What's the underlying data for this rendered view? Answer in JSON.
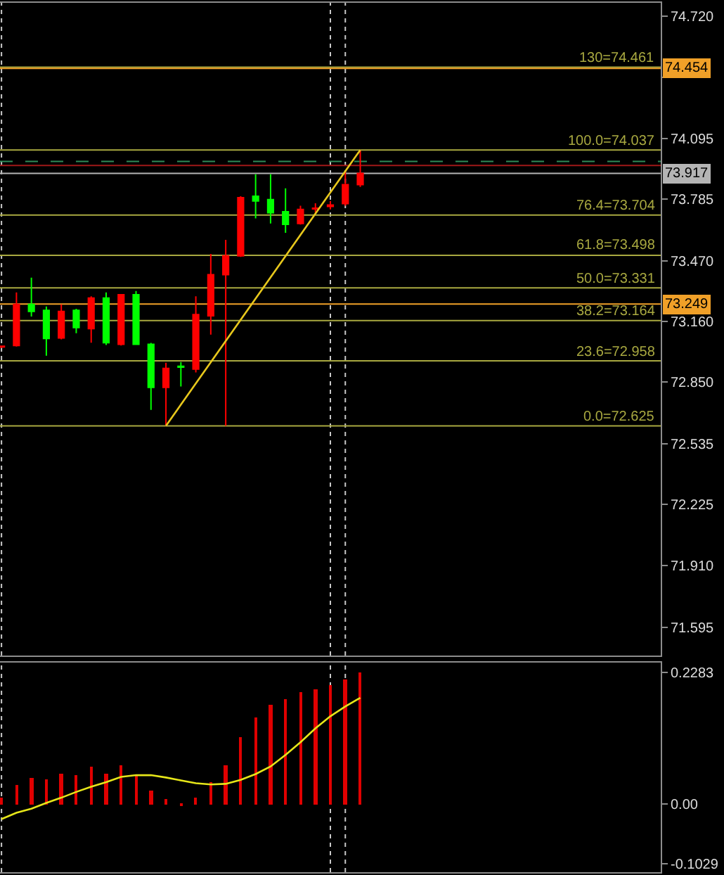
{
  "chart_data": [
    {
      "type": "candlestick",
      "categories": [
        null,
        null,
        null,
        null,
        null,
        null,
        null,
        null,
        null,
        null,
        null,
        null,
        null,
        null,
        null,
        null,
        null,
        null,
        null,
        null,
        null,
        null,
        null,
        null,
        null,
        null,
        null,
        null,
        null,
        null,
        null,
        null,
        null,
        null,
        null,
        null,
        null,
        null,
        null,
        null,
        null,
        null,
        null,
        null,
        null
      ],
      "ohlc": [
        [
          73.029,
          73.036,
          73.024,
          73.033
        ],
        [
          73.036,
          73.308,
          73.031,
          73.247
        ],
        [
          73.247,
          73.384,
          73.185,
          73.211
        ],
        [
          73.216,
          73.236,
          72.984,
          73.072
        ],
        [
          73.075,
          73.247,
          73.068,
          73.211
        ],
        [
          73.216,
          73.224,
          73.099,
          73.128
        ],
        [
          73.123,
          73.288,
          73.051,
          73.279
        ],
        [
          73.279,
          73.308,
          73.039,
          73.051
        ],
        [
          73.043,
          73.3,
          73.036,
          73.296
        ],
        [
          73.296,
          73.315,
          73.039,
          73.043
        ],
        [
          73.043,
          73.05,
          72.707,
          72.822
        ],
        [
          72.822,
          72.948,
          72.625,
          72.919
        ],
        [
          72.93,
          72.952,
          72.827,
          72.926
        ],
        [
          72.916,
          73.288,
          72.899,
          73.195
        ],
        [
          73.188,
          73.505,
          73.092,
          73.399
        ],
        [
          73.399,
          73.577,
          72.625,
          73.495
        ],
        [
          73.495,
          73.8,
          73.49,
          73.793
        ],
        [
          73.8,
          73.913,
          73.687,
          73.776
        ],
        [
          73.783,
          73.913,
          73.661,
          73.716
        ],
        [
          73.721,
          73.841,
          73.613,
          73.656
        ],
        [
          73.661,
          73.752,
          73.655,
          73.733
        ],
        [
          73.735,
          73.764,
          73.716,
          73.739
        ],
        [
          73.748,
          73.776,
          73.733,
          73.755
        ],
        [
          73.762,
          73.928,
          73.752,
          73.86
        ],
        [
          73.86,
          74.037,
          73.848,
          73.917
        ],
        null,
        null,
        null,
        null,
        null,
        null,
        null,
        null,
        null,
        null,
        null,
        null,
        null,
        null,
        null,
        null,
        null,
        null,
        null,
        null
      ],
      "colors": [
        "#ff0000",
        "#ff0000",
        "#00ff00",
        "#00ff00",
        "#ff0000",
        "#00ff00",
        "#ff0000",
        "#00ff00",
        "#ff0000",
        "#00ff00",
        "#00ff00",
        "#ff0000",
        "#00ff00",
        "#ff0000",
        "#ff0000",
        "#ff0000",
        "#ff0000",
        "#00ff00",
        "#00ff00",
        "#00ff00",
        "#ff0000",
        "#ff0000",
        "#ff0000",
        "#ff0000",
        "#ff0000",
        null,
        null,
        null,
        null,
        null,
        null,
        null,
        null,
        null,
        null,
        null,
        null,
        null,
        null,
        null,
        null,
        null,
        null,
        null,
        null
      ],
      "series": [
        {
          "type": "line",
          "values": [
            null,
            null,
            null,
            null,
            null,
            null,
            null,
            null,
            null,
            null,
            null,
            72.625,
            null,
            null,
            null,
            null,
            null,
            null,
            null,
            null,
            null,
            null,
            null,
            null,
            74.037,
            null,
            null,
            null,
            null,
            null,
            null,
            null,
            null,
            null,
            null,
            null,
            null,
            null,
            null,
            null,
            null,
            null,
            null,
            null,
            null
          ],
          "color": "#e8c81c"
        }
      ],
      "ylim": [
        71.45,
        74.79
      ],
      "yticks": [
        {
          "value": 74.72,
          "label": "74.720"
        },
        {
          "value": 74.41,
          "label": null
        },
        74.095,
        73.785,
        {
          "value": 73.47,
          "label": "73.470"
        },
        {
          "value": 73.16,
          "label": "73.160"
        },
        {
          "value": 72.85,
          "label": "72.850"
        },
        72.535,
        72.225,
        {
          "value": 71.91,
          "label": "71.910"
        },
        71.595
      ],
      "tick_labels": "y",
      "ref_lines": [
        {
          "axis": "y",
          "value": 74.461,
          "color": "#a8a840"
        },
        {
          "axis": "y",
          "value": 74.454,
          "label": "74.454",
          "color": "#f0a028"
        },
        {
          "axis": "y",
          "value": 74.037,
          "color": "#a8a840"
        },
        {
          "axis": "y",
          "value": 73.978,
          "color": "#2e8b57",
          "line_style": "dashed"
        },
        {
          "axis": "y",
          "value": 73.958,
          "color": "#a01818"
        },
        {
          "axis": "y",
          "value": 73.917,
          "label": "73.917",
          "color": "#b4b4b4"
        },
        {
          "axis": "y",
          "value": 73.704,
          "color": "#a8a840"
        },
        {
          "axis": "y",
          "value": 73.498,
          "color": "#a8a840"
        },
        {
          "axis": "y",
          "value": 73.331,
          "color": "#a8a840"
        },
        {
          "axis": "y",
          "value": 73.249,
          "label": "73.249",
          "color": "#f0a028"
        },
        {
          "axis": "y",
          "value": 73.164,
          "color": "#a8a840"
        },
        {
          "axis": "y",
          "value": 72.958,
          "color": "#a8a840"
        },
        {
          "axis": "y",
          "value": 72.625,
          "color": "#a8a840"
        }
      ],
      "annotations": [
        {
          "text": "130=74.461",
          "y": 74.461
        },
        {
          "text": "100.0=74.037",
          "y": 74.037
        },
        {
          "text": "76.4=73.704",
          "y": 73.704
        },
        {
          "text": "61.8=73.498",
          "y": 73.498
        },
        {
          "text": "50.0=73.331",
          "y": 73.331
        },
        {
          "text": "38.2=73.164",
          "y": 73.164
        },
        {
          "text": "23.6=72.958",
          "y": 72.958
        },
        {
          "text": "0.0=72.625",
          "y": 72.625
        }
      ]
    },
    {
      "type": "bar",
      "categories": [
        null,
        null,
        null,
        null,
        null,
        null,
        null,
        null,
        null,
        null,
        null,
        null,
        null,
        null,
        null,
        null,
        null,
        null,
        null,
        null,
        null,
        null,
        null,
        null,
        null,
        null,
        null,
        null,
        null,
        null,
        null,
        null,
        null,
        null,
        null,
        null,
        null,
        null,
        null,
        null,
        null,
        null,
        null,
        null,
        null
      ],
      "series": [
        {
          "type": "bar",
          "color": "#e00000",
          "values": [
            0.012,
            0.032,
            0.046,
            0.044,
            0.053,
            0.051,
            0.064,
            0.053,
            0.066,
            0.05,
            0.023,
            0.008,
            -0.002,
            0.011,
            0.038,
            0.068,
            0.117,
            0.151,
            0.172,
            0.181,
            0.193,
            0.199,
            0.207,
            0.216,
            0.228,
            null,
            null,
            null,
            null,
            null,
            null,
            null,
            null,
            null,
            null,
            null,
            null,
            null,
            null,
            null,
            null,
            null,
            null,
            null,
            null
          ]
        },
        {
          "type": "line",
          "color": "#e6e619",
          "values": [
            -0.026,
            -0.015,
            -0.008,
            0.002,
            0.011,
            0.021,
            0.03,
            0.038,
            0.047,
            0.05,
            0.05,
            0.046,
            0.041,
            0.036,
            0.034,
            0.035,
            0.042,
            0.052,
            0.065,
            0.085,
            0.107,
            0.131,
            0.152,
            0.169,
            0.184,
            null,
            null,
            null,
            null,
            null,
            null,
            null,
            null,
            null,
            null,
            null,
            null,
            null,
            null,
            null,
            null,
            null,
            null,
            null,
            null
          ]
        }
      ],
      "ylim": [
        -0.118,
        0.245
      ],
      "yticks": [
        0.2283,
        {
          "value": 0,
          "label": "0.00"
        },
        -0.1029
      ],
      "tick_labels": "y"
    }
  ]
}
